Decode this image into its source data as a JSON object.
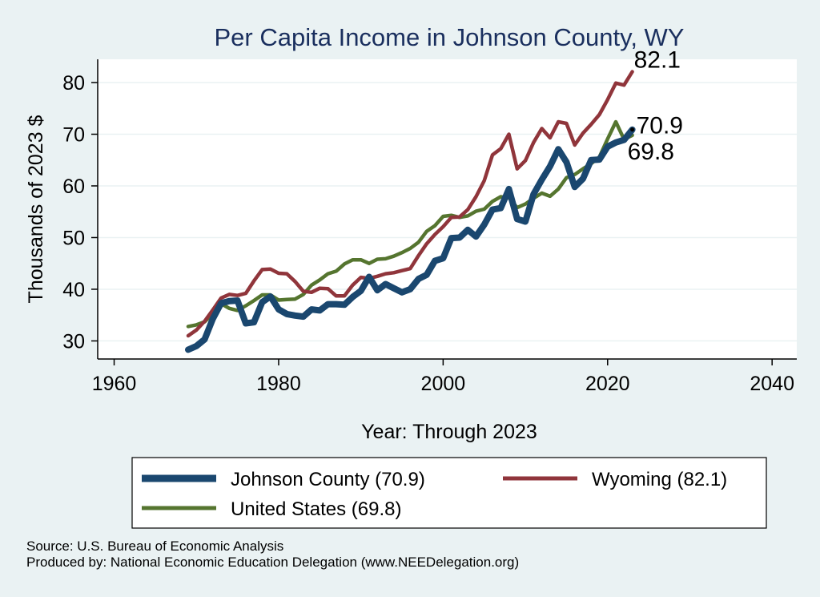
{
  "chart_data": {
    "type": "line",
    "title": "Per Capita Income in Johnson County, WY",
    "xlabel": "Year: Through 2023",
    "ylabel": "Thousands of 2023 $",
    "xlim": [
      1958,
      2043
    ],
    "ylim": [
      26.5,
      84.5
    ],
    "xticks": [
      1960,
      1980,
      2000,
      2020,
      2040
    ],
    "yticks": [
      30,
      40,
      50,
      60,
      70,
      80
    ],
    "grid": true,
    "x": [
      1969,
      1970,
      1971,
      1972,
      1973,
      1974,
      1975,
      1976,
      1977,
      1978,
      1979,
      1980,
      1981,
      1982,
      1983,
      1984,
      1985,
      1986,
      1987,
      1988,
      1989,
      1990,
      1991,
      1992,
      1993,
      1994,
      1995,
      1996,
      1997,
      1998,
      1999,
      2000,
      2001,
      2002,
      2003,
      2004,
      2005,
      2006,
      2007,
      2008,
      2009,
      2010,
      2011,
      2012,
      2013,
      2014,
      2015,
      2016,
      2017,
      2018,
      2019,
      2020,
      2021,
      2022,
      2023
    ],
    "series": [
      {
        "name": "Johnson County (70.9)",
        "color": "#1a476f",
        "end_label": "70.9",
        "values": [
          28.3,
          29.0,
          30.3,
          34.3,
          37.3,
          37.7,
          37.8,
          33.4,
          33.6,
          37.5,
          38.6,
          36.1,
          35.2,
          34.9,
          34.7,
          36.1,
          35.9,
          37.1,
          37.1,
          37.0,
          38.5,
          39.7,
          42.4,
          39.8,
          41.0,
          40.2,
          39.4,
          40.0,
          42.0,
          42.8,
          45.5,
          46.0,
          49.9,
          50.0,
          51.5,
          50.2,
          52.5,
          55.4,
          55.7,
          59.4,
          53.6,
          53.1,
          58.4,
          61.2,
          63.8,
          67.1,
          64.6,
          59.8,
          61.4,
          65.0,
          65.1,
          67.6,
          68.4,
          68.9,
          70.9
        ]
      },
      {
        "name": "Wyoming (82.1)",
        "color": "#90353b",
        "end_label": "82.1",
        "values": [
          31.0,
          32.1,
          33.8,
          36.0,
          38.3,
          39.0,
          38.8,
          39.2,
          41.6,
          43.8,
          43.9,
          43.1,
          43.0,
          41.5,
          39.6,
          39.4,
          40.2,
          40.1,
          38.7,
          38.7,
          40.8,
          42.3,
          42.1,
          42.5,
          43.0,
          43.2,
          43.6,
          44.0,
          46.5,
          48.8,
          50.6,
          52.1,
          53.9,
          54.0,
          55.4,
          57.9,
          61.0,
          66.0,
          67.2,
          70.0,
          63.3,
          64.9,
          68.4,
          71.1,
          69.3,
          72.4,
          72.1,
          67.9,
          70.2,
          71.9,
          73.8,
          76.7,
          79.9,
          79.5,
          82.1
        ]
      },
      {
        "name": "United States (69.8)",
        "color": "#55752f",
        "end_label": "69.8",
        "values": [
          32.8,
          33.1,
          33.7,
          35.3,
          37.2,
          36.3,
          35.9,
          36.8,
          37.8,
          38.9,
          38.9,
          37.9,
          38.0,
          38.1,
          39.0,
          40.8,
          41.8,
          43.0,
          43.5,
          44.9,
          45.7,
          45.7,
          45.0,
          45.8,
          45.9,
          46.4,
          47.1,
          47.9,
          49.1,
          51.2,
          52.3,
          54.1,
          54.3,
          53.9,
          54.2,
          55.1,
          55.5,
          57.0,
          57.9,
          57.7,
          55.8,
          56.5,
          57.6,
          58.6,
          58.0,
          59.4,
          61.6,
          62.2,
          63.3,
          64.3,
          65.6,
          69.1,
          72.4,
          69.0,
          69.8
        ]
      }
    ],
    "legend": {
      "position": "bottom",
      "entries": [
        "Johnson County (70.9)",
        "Wyoming (82.1)",
        "United States (69.8)"
      ]
    }
  },
  "source_line": "Source: U.S. Bureau of Economic Analysis",
  "produced_line": "Produced by: National Economic Education Delegation (www.NEEDelegation.org)"
}
